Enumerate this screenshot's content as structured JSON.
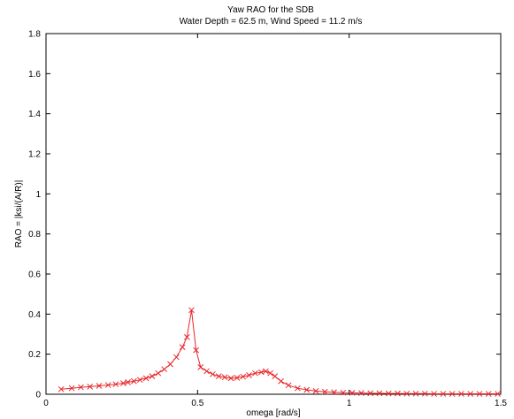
{
  "chart_data": {
    "type": "line",
    "title": "Yaw RAO for the SDB",
    "subtitle": "Water Depth = 62.5 m, Wind Speed = 11.2 m/s",
    "xlabel": "omega [rad/s]",
    "ylabel": "RAO = |ksi/(A/R)|",
    "xlim": [
      0,
      1.5
    ],
    "ylim": [
      0,
      1.8
    ],
    "xticks": [
      0,
      0.5,
      1,
      1.5
    ],
    "xtick_labels": [
      "0",
      "0.5",
      "1",
      "1.5"
    ],
    "yticks": [
      0,
      0.2,
      0.4,
      0.6,
      0.8,
      1,
      1.2,
      1.4,
      1.6,
      1.8
    ],
    "ytick_labels": [
      "0",
      "0.2",
      "0.4",
      "0.6",
      "0.8",
      "1",
      "1.2",
      "1.4",
      "1.6",
      "1.8"
    ],
    "grid": false,
    "series": [
      {
        "color": "#e8262a",
        "marker": "x",
        "x": [
          0.05,
          0.085,
          0.115,
          0.145,
          0.175,
          0.205,
          0.23,
          0.255,
          0.27,
          0.29,
          0.31,
          0.33,
          0.35,
          0.37,
          0.39,
          0.41,
          0.43,
          0.45,
          0.465,
          0.48,
          0.495,
          0.51,
          0.53,
          0.55,
          0.57,
          0.59,
          0.61,
          0.63,
          0.65,
          0.67,
          0.69,
          0.71,
          0.725,
          0.74,
          0.755,
          0.775,
          0.8,
          0.83,
          0.86,
          0.89,
          0.92,
          0.95,
          0.98,
          1.01,
          1.04,
          1.07,
          1.1,
          1.13,
          1.16,
          1.19,
          1.22,
          1.25,
          1.28,
          1.31,
          1.34,
          1.37,
          1.4,
          1.43,
          1.46,
          1.49
        ],
        "y": [
          0.025,
          0.03,
          0.035,
          0.038,
          0.042,
          0.046,
          0.05,
          0.055,
          0.06,
          0.065,
          0.072,
          0.08,
          0.09,
          0.105,
          0.125,
          0.15,
          0.185,
          0.235,
          0.285,
          0.42,
          0.22,
          0.135,
          0.115,
          0.1,
          0.09,
          0.085,
          0.08,
          0.082,
          0.088,
          0.095,
          0.105,
          0.11,
          0.115,
          0.105,
          0.09,
          0.065,
          0.045,
          0.03,
          0.022,
          0.016,
          0.012,
          0.01,
          0.008,
          0.007,
          0.006,
          0.005,
          0.005,
          0.004,
          0.004,
          0.003,
          0.003,
          0.003,
          0.002,
          0.002,
          0.002,
          0.002,
          0.002,
          0.002,
          0.002,
          0.002
        ]
      }
    ]
  }
}
